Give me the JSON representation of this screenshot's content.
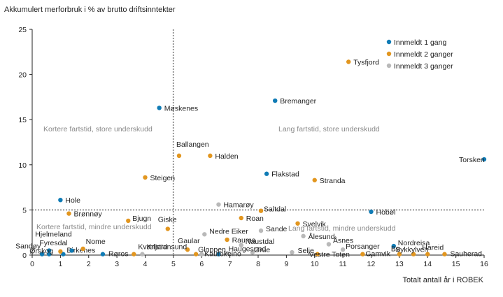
{
  "chart_data": {
    "type": "scatter",
    "ylabel": "Akkumulert merforbruk i % av brutto driftsinntekter",
    "xlabel": "Totalt antall år i ROBEK",
    "xlim": [
      0,
      16
    ],
    "ylim": [
      0,
      25
    ],
    "xticks": [
      0,
      1,
      2,
      3,
      4,
      5,
      6,
      7,
      8,
      9,
      10,
      11,
      12,
      13,
      14,
      15,
      16
    ],
    "yticks": [
      0,
      5,
      10,
      15,
      20,
      25
    ],
    "grid": false,
    "legend_position": "top-right",
    "reference_lines": {
      "x": 5,
      "y": 5
    },
    "quadrant_labels": [
      "Kortere fartstid,  store underskudd",
      "Lang fartstid, store underskudd",
      "Kortere fartstid,  mindre underskudd",
      "Lang fartstid, mindre underskudd"
    ],
    "series": [
      {
        "name": "Innmeldt 1 gang",
        "color": "#0f7bb5",
        "points": [
          {
            "label": "Møskenes",
            "x": 4.5,
            "y": 16.3
          },
          {
            "label": "Bremanger",
            "x": 8.6,
            "y": 17.1
          },
          {
            "label": "Flakstad",
            "x": 8.3,
            "y": 9.0
          },
          {
            "label": "Hole",
            "x": 1.0,
            "y": 6.1
          },
          {
            "label": "Hobøl",
            "x": 12.0,
            "y": 4.8
          },
          {
            "label": "Torsken",
            "x": 16.0,
            "y": 10.6
          },
          {
            "label": "Nordreisa",
            "x": 12.8,
            "y": 1.0
          },
          {
            "label": "Sandøy",
            "x": 0.35,
            "y": 0.1
          },
          {
            "label": "Hjelmeland",
            "x": 0.6,
            "y": 0.5
          },
          {
            "label": "Ørskog",
            "x": 0.6,
            "y": 0.1
          },
          {
            "label": "Birkenes",
            "x": 1.1,
            "y": 0.1
          },
          {
            "label": "",
            "x": 1.4,
            "y": 0.5
          },
          {
            "label": "Røros",
            "x": 2.5,
            "y": 0.1
          },
          {
            "label": "",
            "x": 6.6,
            "y": 0.1
          }
        ]
      },
      {
        "name": "Innmeldt 2 ganger",
        "color": "#e2961f",
        "points": [
          {
            "label": "Tysfjord",
            "x": 11.2,
            "y": 21.4
          },
          {
            "label": "Ballangen",
            "x": 5.2,
            "y": 11.0
          },
          {
            "label": "Halden",
            "x": 6.3,
            "y": 11.0
          },
          {
            "label": "Steigen",
            "x": 4.0,
            "y": 8.6
          },
          {
            "label": "Stranda",
            "x": 10.0,
            "y": 8.3
          },
          {
            "label": "Brønnøy",
            "x": 1.3,
            "y": 4.6
          },
          {
            "label": "Saltdal",
            "x": 8.1,
            "y": 4.9
          },
          {
            "label": "Roan",
            "x": 7.4,
            "y": 4.1
          },
          {
            "label": "Svelvik",
            "x": 9.4,
            "y": 3.5
          },
          {
            "label": "Bjugn",
            "x": 3.4,
            "y": 3.8
          },
          {
            "label": "Giske",
            "x": 4.8,
            "y": 2.9
          },
          {
            "label": "Rauma",
            "x": 6.9,
            "y": 1.7
          },
          {
            "label": "Gaular",
            "x": 5.5,
            "y": 0.6
          },
          {
            "label": "Gloppen",
            "x": 5.8,
            "y": 0.1
          },
          {
            "label": "Kvæfjord",
            "x": 3.6,
            "y": 0.1
          },
          {
            "label": "Nome",
            "x": 1.8,
            "y": 0.7
          },
          {
            "label": "Fyresdal",
            "x": 1.0,
            "y": 0.4
          },
          {
            "label": "Vestre Toten",
            "x": 10.1,
            "y": 0.1
          },
          {
            "label": "Gamvik",
            "x": 11.7,
            "y": 0.1
          },
          {
            "label": "Bø",
            "x": 13.0,
            "y": 0.1
          },
          {
            "label": "Sykkylven",
            "x": 13.5,
            "y": 0.1
          },
          {
            "label": "Hareid",
            "x": 14.0,
            "y": 0.1
          },
          {
            "label": "Sauherad",
            "x": 14.6,
            "y": 0.1
          }
        ]
      },
      {
        "name": "Innmeldt 3 ganger",
        "color": "#b9b9b9",
        "points": [
          {
            "label": "Hamarøy",
            "x": 6.6,
            "y": 5.6
          },
          {
            "label": "Nedre Eiker",
            "x": 6.1,
            "y": 2.3
          },
          {
            "label": "Sande",
            "x": 8.1,
            "y": 2.7
          },
          {
            "label": "Ålesund",
            "x": 9.6,
            "y": 2.1
          },
          {
            "label": "Åsnes",
            "x": 10.5,
            "y": 1.2
          },
          {
            "label": "Naustdal",
            "x": 7.4,
            "y": 1.1
          },
          {
            "label": "Porsanger",
            "x": 11.0,
            "y": 0.6
          },
          {
            "label": "Grue",
            "x": 7.8,
            "y": 0.3
          },
          {
            "label": "Selje",
            "x": 9.2,
            "y": 0.3
          },
          {
            "label": "Haugesund",
            "x": 6.9,
            "y": 0.2
          },
          {
            "label": "Kautokeino",
            "x": 6.0,
            "y": 0.1
          },
          {
            "label": "Kristiansund",
            "x": 3.9,
            "y": 0.1
          }
        ]
      }
    ]
  }
}
